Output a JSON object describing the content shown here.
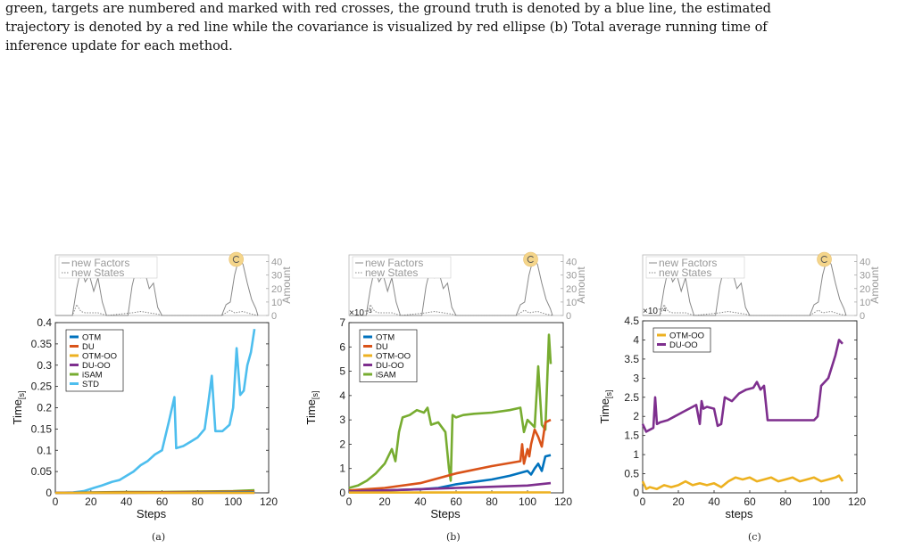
{
  "caption": {
    "line1": "green, targets are numbered and marked with red crosses, the ground truth is denoted by a blue line, the estimated",
    "line2": "trajectory is denoted by a red line while the covariance is visualized by red ellipse (b) Total average running time of",
    "line3": "inference update for each method."
  },
  "colors": {
    "OTM": "#0072BD",
    "DU": "#D95319",
    "OTM-OO": "#EDB120",
    "DU-OO": "#7E2F8E",
    "iSAM": "#77AC30",
    "STD": "#4DBEEE",
    "amount": "#888888",
    "badge": "#F4D58A"
  },
  "top_inset": {
    "legend": [
      "new Factors",
      "new States"
    ],
    "ylabel": "Amount",
    "ticks": [
      "40",
      "30",
      "20",
      "10",
      "0"
    ]
  },
  "chart_data": [
    {
      "id": "a",
      "type": "line",
      "panel_label": "(a)",
      "xlabel": "Steps",
      "ylabel": "Time",
      "ylabel_unit": "[s]",
      "xlim": [
        0,
        120
      ],
      "ylim": [
        0,
        0.4
      ],
      "xticks": [
        "0",
        "20",
        "40",
        "60",
        "80",
        "100",
        "120"
      ],
      "yticks": [
        "0",
        "0.05",
        "0.1",
        "0.15",
        "0.2",
        "0.25",
        "0.3",
        "0.35",
        "0.4"
      ],
      "exponent": "",
      "legend": [
        "OTM",
        "DU",
        "OTM-OO",
        "DU-OO",
        "iSAM",
        "STD"
      ],
      "series": [
        {
          "name": "STD",
          "x": [
            0,
            10,
            16,
            22,
            26,
            32,
            36,
            40,
            44,
            48,
            52,
            56,
            60,
            64,
            67,
            68,
            72,
            76,
            80,
            84,
            86,
            88,
            90,
            94,
            98,
            100,
            102,
            104,
            106,
            108,
            110,
            112
          ],
          "y": [
            0,
            0.001,
            0.004,
            0.012,
            0.017,
            0.026,
            0.03,
            0.04,
            0.05,
            0.065,
            0.075,
            0.09,
            0.1,
            0.17,
            0.225,
            0.105,
            0.11,
            0.12,
            0.13,
            0.15,
            0.21,
            0.275,
            0.145,
            0.145,
            0.16,
            0.2,
            0.34,
            0.23,
            0.24,
            0.3,
            0.33,
            0.385
          ]
        },
        {
          "name": "iSAM",
          "x": [
            0,
            20,
            40,
            60,
            80,
            100,
            112
          ],
          "y": [
            0,
            0.001,
            0.002,
            0.002,
            0.003,
            0.004,
            0.006
          ]
        },
        {
          "name": "DU",
          "x": [
            0,
            40,
            80,
            112
          ],
          "y": [
            0,
            0.001,
            0.002,
            0.003
          ]
        },
        {
          "name": "OTM",
          "x": [
            0,
            40,
            80,
            112
          ],
          "y": [
            0,
            0.0005,
            0.001,
            0.0015
          ]
        },
        {
          "name": "DU-OO",
          "x": [
            0,
            112
          ],
          "y": [
            0,
            0.0004
          ]
        },
        {
          "name": "OTM-OO",
          "x": [
            0,
            112
          ],
          "y": [
            0,
            0.0002
          ]
        }
      ]
    },
    {
      "id": "b",
      "type": "line",
      "panel_label": "(b)",
      "xlabel": "Steps",
      "ylabel": "Time",
      "ylabel_unit": "[s]",
      "xlim": [
        0,
        120
      ],
      "ylim": [
        0,
        7
      ],
      "xticks": [
        "0",
        "20",
        "40",
        "60",
        "80",
        "100",
        "120"
      ],
      "yticks": [
        "0",
        "1",
        "2",
        "3",
        "4",
        "5",
        "6",
        "7"
      ],
      "exponent": "×10⁻³",
      "legend": [
        "OTM",
        "DU",
        "OTM-OO",
        "DU-OO",
        "iSAM"
      ],
      "series": [
        {
          "name": "iSAM",
          "x": [
            0,
            5,
            10,
            15,
            20,
            24,
            26,
            28,
            30,
            34,
            38,
            42,
            44,
            46,
            50,
            54,
            56,
            57,
            58,
            60,
            64,
            70,
            80,
            90,
            96,
            98,
            100,
            104,
            106,
            108,
            110,
            112,
            113
          ],
          "y": [
            0.2,
            0.3,
            0.5,
            0.8,
            1.2,
            1.8,
            1.3,
            2.5,
            3.1,
            3.2,
            3.4,
            3.3,
            3.5,
            2.8,
            2.9,
            2.5,
            1.0,
            0.5,
            3.2,
            3.1,
            3.2,
            3.25,
            3.3,
            3.4,
            3.5,
            2.5,
            3.0,
            2.7,
            5.2,
            2.8,
            2.6,
            6.5,
            5.3
          ]
        },
        {
          "name": "DU",
          "x": [
            0,
            20,
            40,
            60,
            80,
            96,
            97,
            98,
            100,
            101,
            102,
            104,
            106,
            108,
            110,
            113
          ],
          "y": [
            0.1,
            0.2,
            0.4,
            0.8,
            1.1,
            1.3,
            2.0,
            1.2,
            1.8,
            1.5,
            2.0,
            2.6,
            2.3,
            1.9,
            2.9,
            3.0
          ]
        },
        {
          "name": "OTM",
          "x": [
            0,
            20,
            40,
            50,
            60,
            70,
            80,
            90,
            100,
            102,
            104,
            106,
            108,
            110,
            113
          ],
          "y": [
            0.05,
            0.1,
            0.15,
            0.2,
            0.35,
            0.45,
            0.55,
            0.7,
            0.9,
            0.75,
            1.0,
            1.2,
            0.9,
            1.5,
            1.55
          ]
        },
        {
          "name": "DU-OO",
          "x": [
            0,
            20,
            40,
            60,
            80,
            100,
            113
          ],
          "y": [
            0.05,
            0.1,
            0.15,
            0.2,
            0.25,
            0.3,
            0.4
          ]
        },
        {
          "name": "OTM-OO",
          "x": [
            0,
            113
          ],
          "y": [
            0.01,
            0.02
          ]
        }
      ]
    },
    {
      "id": "c",
      "type": "line",
      "panel_label": "(c)",
      "xlabel": "steps",
      "ylabel": "Time",
      "ylabel_unit": "[s]",
      "xlim": [
        0,
        120
      ],
      "ylim": [
        0,
        4.5
      ],
      "xticks": [
        "0",
        "20",
        "40",
        "60",
        "80",
        "100",
        "120"
      ],
      "yticks": [
        "0",
        "0.5",
        "1",
        "1.5",
        "2",
        "2.5",
        "3",
        "3.5",
        "4",
        "4.5"
      ],
      "exponent": "×10⁻⁴",
      "legend": [
        "OTM-OO",
        "DU-OO"
      ],
      "series": [
        {
          "name": "DU-OO",
          "x": [
            0,
            2,
            4,
            6,
            7,
            8,
            10,
            14,
            18,
            22,
            26,
            30,
            32,
            33,
            34,
            36,
            40,
            42,
            44,
            46,
            50,
            54,
            58,
            62,
            64,
            66,
            68,
            70,
            74,
            80,
            86,
            92,
            96,
            98,
            100,
            102,
            104,
            106,
            108,
            110,
            112
          ],
          "y": [
            1.8,
            1.6,
            1.65,
            1.7,
            2.5,
            1.8,
            1.85,
            1.9,
            2.0,
            2.1,
            2.2,
            2.3,
            1.8,
            2.4,
            2.2,
            2.25,
            2.2,
            1.75,
            1.8,
            2.5,
            2.4,
            2.6,
            2.7,
            2.75,
            2.9,
            2.7,
            2.8,
            1.9,
            1.9,
            1.9,
            1.9,
            1.9,
            1.9,
            2.0,
            2.8,
            2.9,
            3.0,
            3.3,
            3.6,
            4.0,
            3.9
          ]
        },
        {
          "name": "OTM-OO",
          "x": [
            0,
            2,
            4,
            8,
            12,
            16,
            20,
            24,
            28,
            32,
            36,
            40,
            44,
            48,
            52,
            56,
            60,
            64,
            68,
            72,
            76,
            80,
            84,
            88,
            92,
            96,
            100,
            104,
            108,
            110,
            112
          ],
          "y": [
            0.3,
            0.1,
            0.15,
            0.1,
            0.2,
            0.15,
            0.2,
            0.3,
            0.2,
            0.25,
            0.2,
            0.25,
            0.15,
            0.3,
            0.4,
            0.35,
            0.4,
            0.3,
            0.35,
            0.4,
            0.3,
            0.35,
            0.4,
            0.3,
            0.35,
            0.4,
            0.3,
            0.35,
            0.4,
            0.45,
            0.3
          ]
        }
      ]
    }
  ]
}
